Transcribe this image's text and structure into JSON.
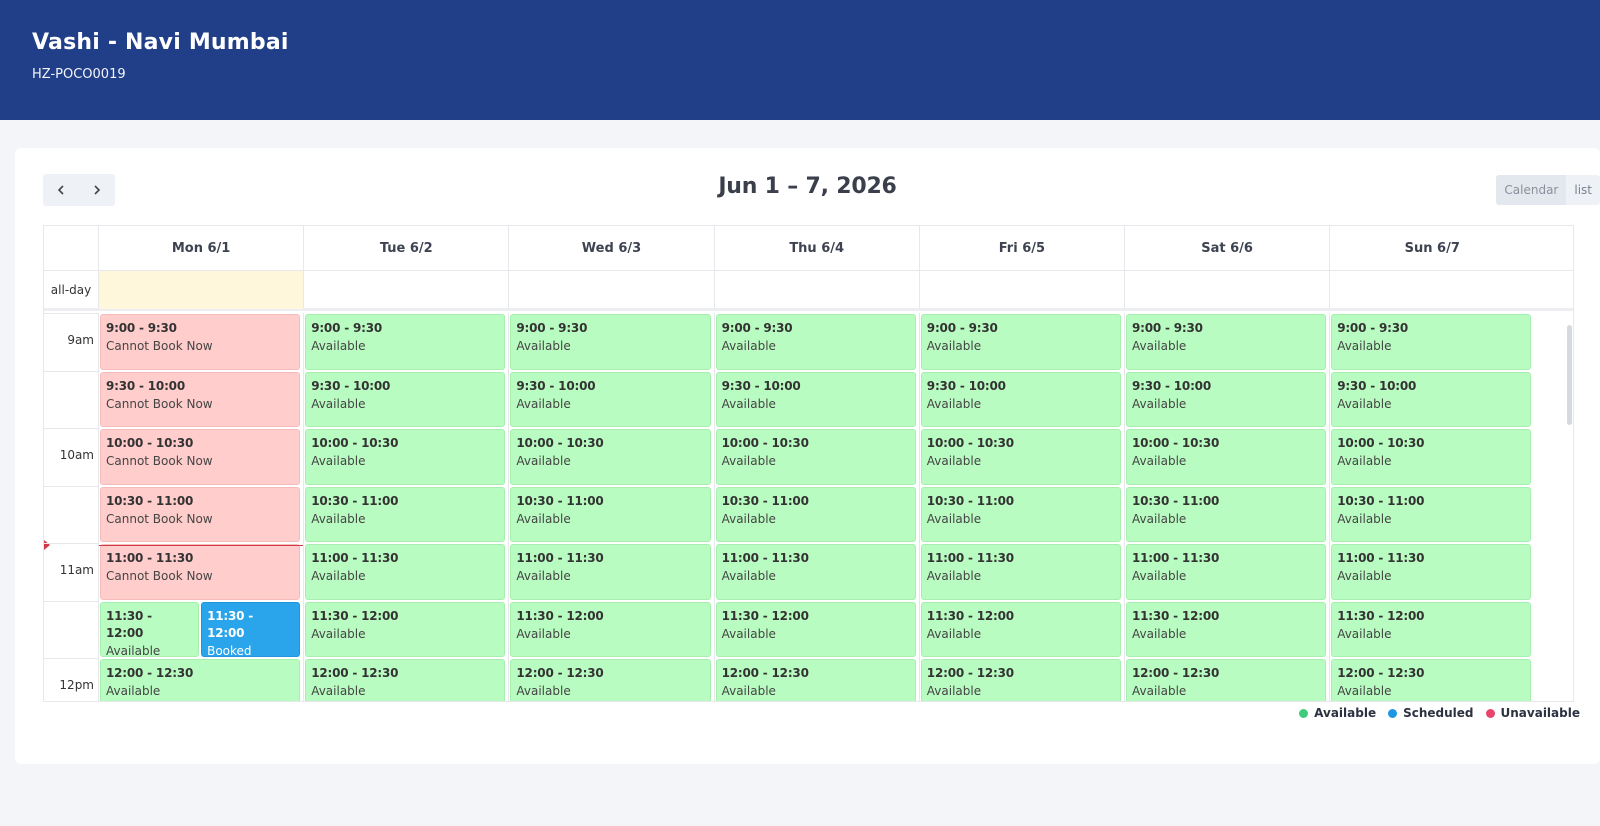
{
  "header": {
    "title": "Vashi - Navi Mumbai",
    "subtitle": "HZ-POCO0019"
  },
  "toolbar": {
    "prev_icon": "chevron-left-icon",
    "next_icon": "chevron-right-icon",
    "range_title": "Jun 1 – 7, 2026",
    "view_calendar": "Calendar",
    "view_list": "list",
    "active_view": "Calendar"
  },
  "grid": {
    "all_day_label": "all-day",
    "days": [
      "Mon 6/1",
      "Tue 6/2",
      "Wed 6/3",
      "Thu 6/4",
      "Fri 6/5",
      "Sat 6/6",
      "Sun 6/7"
    ],
    "hour_labels": [
      "9am",
      "10am",
      "11am",
      "12pm"
    ],
    "slots": [
      "9:00 - 9:30",
      "9:30 - 10:00",
      "10:00 - 10:30",
      "10:30 - 11:00",
      "11:00 - 11:30",
      "11:30 - 12:00",
      "12:00 - 12:30"
    ],
    "events": [
      {
        "day": 0,
        "slot": 0,
        "time": "9:00 - 9:30",
        "status": "Cannot Book Now",
        "kind": "unavailable"
      },
      {
        "day": 0,
        "slot": 1,
        "time": "9:30 - 10:00",
        "status": "Cannot Book Now",
        "kind": "unavailable"
      },
      {
        "day": 0,
        "slot": 2,
        "time": "10:00 - 10:30",
        "status": "Cannot Book Now",
        "kind": "unavailable"
      },
      {
        "day": 0,
        "slot": 3,
        "time": "10:30 - 11:00",
        "status": "Cannot Book Now",
        "kind": "unavailable"
      },
      {
        "day": 0,
        "slot": 4,
        "time": "11:00 - 11:30",
        "status": "Cannot Book Now",
        "kind": "unavailable"
      },
      {
        "day": 0,
        "slot": 5,
        "time": "11:30 - 12:00",
        "status": "Available",
        "kind": "available",
        "half": "left"
      },
      {
        "day": 0,
        "slot": 5,
        "time": "11:30 - 12:00",
        "status": "Booked",
        "kind": "booked",
        "half": "right"
      },
      {
        "day": 0,
        "slot": 6,
        "time": "12:00 - 12:30",
        "status": "Available",
        "kind": "available"
      },
      {
        "day": 1,
        "slot": 0,
        "time": "9:00 - 9:30",
        "status": "Available",
        "kind": "available"
      },
      {
        "day": 1,
        "slot": 1,
        "time": "9:30 - 10:00",
        "status": "Available",
        "kind": "available"
      },
      {
        "day": 1,
        "slot": 2,
        "time": "10:00 - 10:30",
        "status": "Available",
        "kind": "available"
      },
      {
        "day": 1,
        "slot": 3,
        "time": "10:30 - 11:00",
        "status": "Available",
        "kind": "available"
      },
      {
        "day": 1,
        "slot": 4,
        "time": "11:00 - 11:30",
        "status": "Available",
        "kind": "available"
      },
      {
        "day": 1,
        "slot": 5,
        "time": "11:30 - 12:00",
        "status": "Available",
        "kind": "available"
      },
      {
        "day": 1,
        "slot": 6,
        "time": "12:00 - 12:30",
        "status": "Available",
        "kind": "available"
      },
      {
        "day": 2,
        "slot": 0,
        "time": "9:00 - 9:30",
        "status": "Available",
        "kind": "available"
      },
      {
        "day": 2,
        "slot": 1,
        "time": "9:30 - 10:00",
        "status": "Available",
        "kind": "available"
      },
      {
        "day": 2,
        "slot": 2,
        "time": "10:00 - 10:30",
        "status": "Available",
        "kind": "available"
      },
      {
        "day": 2,
        "slot": 3,
        "time": "10:30 - 11:00",
        "status": "Available",
        "kind": "available"
      },
      {
        "day": 2,
        "slot": 4,
        "time": "11:00 - 11:30",
        "status": "Available",
        "kind": "available"
      },
      {
        "day": 2,
        "slot": 5,
        "time": "11:30 - 12:00",
        "status": "Available",
        "kind": "available"
      },
      {
        "day": 2,
        "slot": 6,
        "time": "12:00 - 12:30",
        "status": "Available",
        "kind": "available"
      },
      {
        "day": 3,
        "slot": 0,
        "time": "9:00 - 9:30",
        "status": "Available",
        "kind": "available"
      },
      {
        "day": 3,
        "slot": 1,
        "time": "9:30 - 10:00",
        "status": "Available",
        "kind": "available"
      },
      {
        "day": 3,
        "slot": 2,
        "time": "10:00 - 10:30",
        "status": "Available",
        "kind": "available"
      },
      {
        "day": 3,
        "slot": 3,
        "time": "10:30 - 11:00",
        "status": "Available",
        "kind": "available"
      },
      {
        "day": 3,
        "slot": 4,
        "time": "11:00 - 11:30",
        "status": "Available",
        "kind": "available"
      },
      {
        "day": 3,
        "slot": 5,
        "time": "11:30 - 12:00",
        "status": "Available",
        "kind": "available"
      },
      {
        "day": 3,
        "slot": 6,
        "time": "12:00 - 12:30",
        "status": "Available",
        "kind": "available"
      },
      {
        "day": 4,
        "slot": 0,
        "time": "9:00 - 9:30",
        "status": "Available",
        "kind": "available"
      },
      {
        "day": 4,
        "slot": 1,
        "time": "9:30 - 10:00",
        "status": "Available",
        "kind": "available"
      },
      {
        "day": 4,
        "slot": 2,
        "time": "10:00 - 10:30",
        "status": "Available",
        "kind": "available"
      },
      {
        "day": 4,
        "slot": 3,
        "time": "10:30 - 11:00",
        "status": "Available",
        "kind": "available"
      },
      {
        "day": 4,
        "slot": 4,
        "time": "11:00 - 11:30",
        "status": "Available",
        "kind": "available"
      },
      {
        "day": 4,
        "slot": 5,
        "time": "11:30 - 12:00",
        "status": "Available",
        "kind": "available"
      },
      {
        "day": 4,
        "slot": 6,
        "time": "12:00 - 12:30",
        "status": "Available",
        "kind": "available"
      },
      {
        "day": 5,
        "slot": 0,
        "time": "9:00 - 9:30",
        "status": "Available",
        "kind": "available"
      },
      {
        "day": 5,
        "slot": 1,
        "time": "9:30 - 10:00",
        "status": "Available",
        "kind": "available"
      },
      {
        "day": 5,
        "slot": 2,
        "time": "10:00 - 10:30",
        "status": "Available",
        "kind": "available"
      },
      {
        "day": 5,
        "slot": 3,
        "time": "10:30 - 11:00",
        "status": "Available",
        "kind": "available"
      },
      {
        "day": 5,
        "slot": 4,
        "time": "11:00 - 11:30",
        "status": "Available",
        "kind": "available"
      },
      {
        "day": 5,
        "slot": 5,
        "time": "11:30 - 12:00",
        "status": "Available",
        "kind": "available"
      },
      {
        "day": 5,
        "slot": 6,
        "time": "12:00 - 12:30",
        "status": "Available",
        "kind": "available"
      },
      {
        "day": 6,
        "slot": 0,
        "time": "9:00 - 9:30",
        "status": "Available",
        "kind": "available"
      },
      {
        "day": 6,
        "slot": 1,
        "time": "9:30 - 10:00",
        "status": "Available",
        "kind": "available"
      },
      {
        "day": 6,
        "slot": 2,
        "time": "10:00 - 10:30",
        "status": "Available",
        "kind": "available"
      },
      {
        "day": 6,
        "slot": 3,
        "time": "10:30 - 11:00",
        "status": "Available",
        "kind": "available"
      },
      {
        "day": 6,
        "slot": 4,
        "time": "11:00 - 11:30",
        "status": "Available",
        "kind": "available"
      },
      {
        "day": 6,
        "slot": 5,
        "time": "11:30 - 12:00",
        "status": "Available",
        "kind": "available"
      },
      {
        "day": 6,
        "slot": 6,
        "time": "12:00 - 12:30",
        "status": "Available",
        "kind": "available"
      }
    ]
  },
  "legend": {
    "items": [
      {
        "label": "Available",
        "color": "#3ecb7a"
      },
      {
        "label": "Scheduled",
        "color": "#1d97e4"
      },
      {
        "label": "Unavailable",
        "color": "#e8456e"
      }
    ]
  },
  "colors": {
    "header_bg": "#213f88",
    "today_allday_bg": "#fef7dc",
    "now_indicator": "#d23a4a"
  }
}
